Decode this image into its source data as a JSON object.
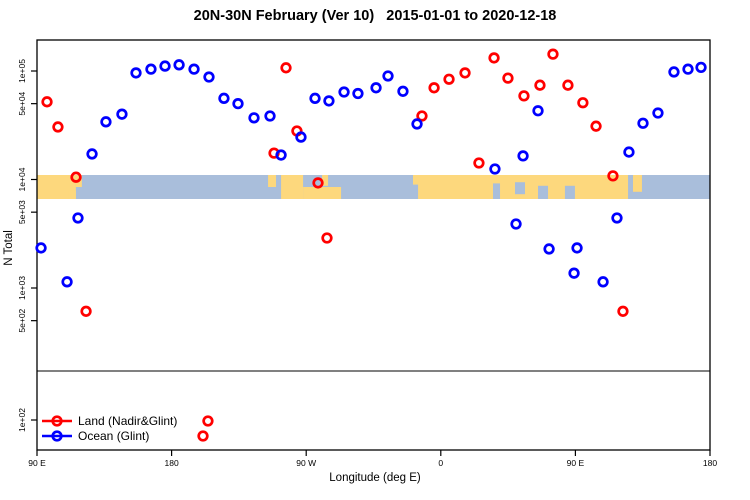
{
  "title": "20N-30N February (Ver 10)   2015-01-01 to 2020-12-18",
  "chart_data": {
    "type": "scatter",
    "title": "20N-30N February (Ver 10)   2015-01-01 to 2020-12-18",
    "xlabel": "Longitude (deg E)",
    "ylabel": "N Total",
    "y_scale": "log",
    "x_axis": {
      "wrapped_longitude_span_deg": 450,
      "tick_labels": [
        "90 E",
        "180",
        "90 W",
        "0",
        "90 E",
        "180"
      ],
      "tick_axis_deg": [
        0,
        90,
        180,
        270,
        360,
        450
      ]
    },
    "y_axis": {
      "tick_labels": [
        "1e+05",
        "5e+04",
        "1e+04",
        "5e+03",
        "1e+03",
        "5e+02",
        "1e+02"
      ],
      "tick_values": [
        100000,
        50000,
        10000,
        5000,
        1000,
        500,
        100
      ],
      "broken_axis_below": 200
    },
    "legend": {
      "position": "bottom-left",
      "items": [
        {
          "label": "Land (Nadir&Glint)",
          "color": "#FF0000"
        },
        {
          "label": "Ocean (Glint)",
          "color": "#0000FF"
        }
      ]
    },
    "series": [
      {
        "name": "Land (Nadir&Glint)",
        "color": "#FF0000",
        "points_deg_n": [
          [
            6.7,
            52000
          ],
          [
            14.0,
            30500
          ],
          [
            26.1,
            10500
          ],
          [
            32.8,
            610
          ],
          [
            158.5,
            17500
          ],
          [
            166.5,
            107000
          ],
          [
            173.8,
            28000
          ],
          [
            187.9,
            9300
          ],
          [
            193.9,
            2890
          ],
          [
            257.4,
            38500
          ],
          [
            265.5,
            70000
          ],
          [
            275.5,
            84000
          ],
          [
            286.2,
            96000
          ],
          [
            295.5,
            14200
          ],
          [
            305.6,
            132000
          ],
          [
            314.9,
            86000
          ],
          [
            325.6,
            59000
          ],
          [
            336.3,
            74000
          ],
          [
            345.0,
            143000
          ],
          [
            355.0,
            74000
          ],
          [
            365.0,
            51000
          ],
          [
            373.8,
            31000
          ],
          [
            385.1,
            10800
          ],
          [
            391.8,
            610
          ]
        ]
      },
      {
        "name": "Ocean (Glint)",
        "color": "#0000FF",
        "points_deg_n": [
          [
            2.7,
            2340
          ],
          [
            20.1,
            1140
          ],
          [
            27.4,
            4420
          ],
          [
            36.8,
            17200
          ],
          [
            46.1,
            34000
          ],
          [
            56.8,
            40000
          ],
          [
            66.2,
            96000
          ],
          [
            76.2,
            104000
          ],
          [
            85.6,
            111000
          ],
          [
            95.0,
            114000
          ],
          [
            105.0,
            104000
          ],
          [
            115.0,
            88000
          ],
          [
            125.0,
            56000
          ],
          [
            134.4,
            50000
          ],
          [
            145.1,
            37000
          ],
          [
            155.8,
            38500
          ],
          [
            163.2,
            16800
          ],
          [
            176.5,
            24600
          ],
          [
            185.9,
            56000
          ],
          [
            195.2,
            53000
          ],
          [
            205.3,
            64000
          ],
          [
            214.6,
            62000
          ],
          [
            226.7,
            70000
          ],
          [
            234.7,
            90000
          ],
          [
            244.7,
            65000
          ],
          [
            254.1,
            32500
          ],
          [
            306.2,
            12500
          ],
          [
            320.3,
            3890
          ],
          [
            325.0,
            16500
          ],
          [
            335.0,
            43000
          ],
          [
            342.4,
            2290
          ],
          [
            359.1,
            1370
          ],
          [
            361.1,
            2340
          ],
          [
            378.5,
            1140
          ],
          [
            387.8,
            4420
          ],
          [
            395.8,
            17900
          ],
          [
            405.2,
            33000
          ],
          [
            415.2,
            41000
          ],
          [
            425.9,
            98000
          ],
          [
            435.3,
            104000
          ],
          [
            444.0,
            108000
          ]
        ]
      }
    ],
    "below_break_points": [
      {
        "series": "land",
        "axis_deg": 114.3,
        "row": 0
      },
      {
        "series": "land",
        "axis_deg": 111.0,
        "row": 1
      }
    ],
    "map_band": {
      "description": "20N-30N latitude world-map strip drawn across the 1e+04 level",
      "ocean_color": "#A9BEDB",
      "land_color": "#FDD87D",
      "land_patches_deg": [
        [
          0,
          26,
          0,
          1
        ],
        [
          26,
          30,
          0,
          0.5
        ],
        [
          21,
          26,
          0.65,
          1
        ],
        [
          154.5,
          159.8,
          0,
          0.5
        ],
        [
          163.2,
          177.9,
          0,
          1
        ],
        [
          177.9,
          203.3,
          0.5,
          1
        ],
        [
          190.6,
          194.6,
          0,
          0.45
        ],
        [
          251.4,
          258.1,
          0,
          0.4
        ],
        [
          254.8,
          395.2,
          0,
          1
        ],
        [
          398.5,
          404.5,
          0,
          0.7
        ]
      ],
      "ocean_notches_deg": [
        [
          304.9,
          309.6,
          0.35,
          1
        ],
        [
          319.6,
          326.3,
          0.3,
          0.8
        ],
        [
          335.0,
          341.7,
          0.45,
          1
        ],
        [
          353.0,
          359.7,
          0.45,
          1
        ]
      ]
    },
    "colors": {
      "border": "#000000",
      "axis_break_line": "#808080",
      "tick_text": "#000000"
    }
  }
}
